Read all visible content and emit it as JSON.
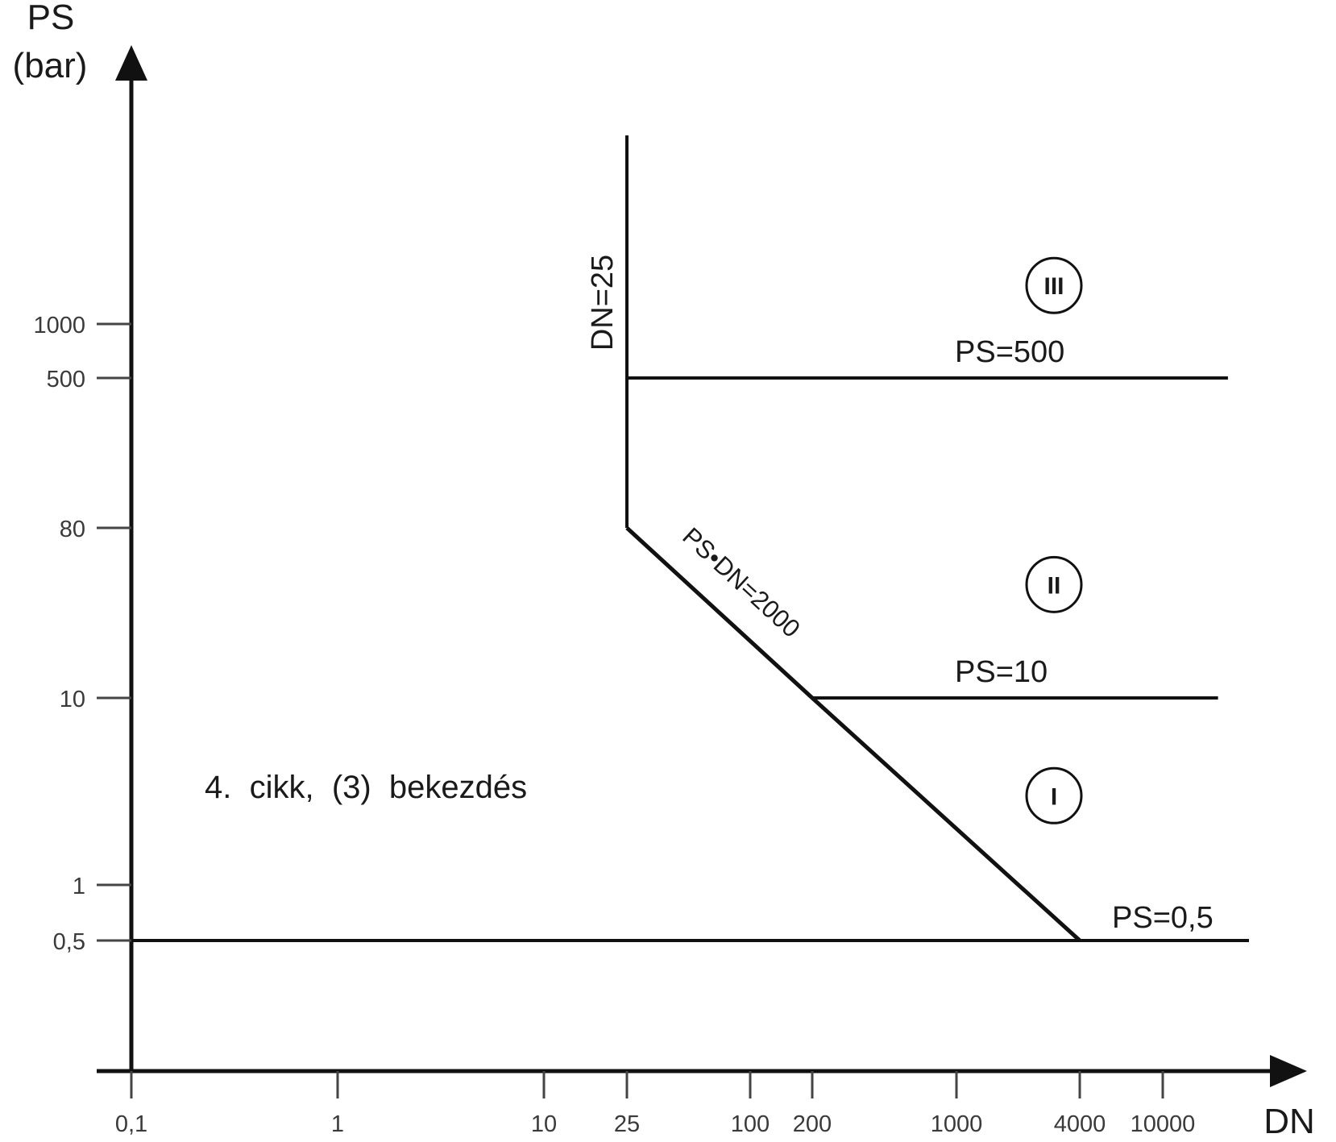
{
  "chart_data": {
    "type": "line",
    "title": "",
    "xlabel": "DN",
    "ylabel": [
      "PS",
      "(bar)"
    ],
    "x_scale": "log",
    "y_scale": "log",
    "x_ticks": [
      {
        "value": 0.1,
        "label": "0,1"
      },
      {
        "value": 1,
        "label": "1"
      },
      {
        "value": 10,
        "label": "10"
      },
      {
        "value": 25,
        "label": "25"
      },
      {
        "value": 100,
        "label": "100"
      },
      {
        "value": 200,
        "label": "200"
      },
      {
        "value": 1000,
        "label": "1000"
      },
      {
        "value": 4000,
        "label": "4000"
      },
      {
        "value": 10000,
        "label": "10000"
      }
    ],
    "y_ticks": [
      {
        "value": 0.5,
        "label": "0,5"
      },
      {
        "value": 1,
        "label": "1"
      },
      {
        "value": 10,
        "label": "10"
      },
      {
        "value": 80,
        "label": "80"
      },
      {
        "value": 500,
        "label": "500"
      },
      {
        "value": 1000,
        "label": "1000"
      }
    ],
    "grid": false,
    "series": [
      {
        "name": "DN=25",
        "x": [
          25,
          25
        ],
        "y": [
          80,
          10000
        ]
      },
      {
        "name": "PS•DN=2000",
        "x": [
          25,
          200,
          4000
        ],
        "y": [
          80,
          10,
          0.5
        ]
      },
      {
        "name": "PS=500",
        "x": [
          25,
          20000
        ],
        "y": [
          500,
          500
        ]
      },
      {
        "name": "PS=10",
        "x": [
          200,
          18000
        ],
        "y": [
          10,
          10
        ]
      },
      {
        "name": "PS=0,5",
        "x": [
          0.1,
          25000
        ],
        "y": [
          0.5,
          0.5
        ]
      }
    ],
    "zones": [
      {
        "label": "III",
        "x": 4000,
        "y": 1600
      },
      {
        "label": "II",
        "x": 4000,
        "y": 40
      },
      {
        "label": "I",
        "x": 4000,
        "y": 3
      }
    ],
    "annotation": "4.  cikk,  (3)  bekezdés"
  }
}
